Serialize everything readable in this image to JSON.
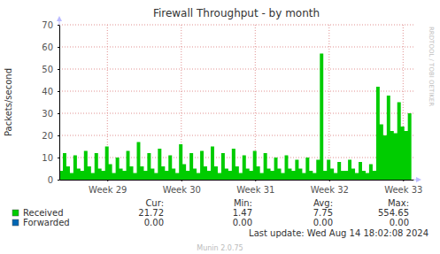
{
  "chart_data": {
    "type": "area",
    "title": "Firewall Throughput - by month",
    "y_label": "Packets/second",
    "x": [
      28.35,
      28.398,
      28.445,
      28.493,
      28.54,
      28.588,
      28.636,
      28.683,
      28.731,
      28.779,
      28.826,
      28.874,
      28.921,
      28.969,
      29.017,
      29.064,
      29.112,
      29.16,
      29.207,
      29.255,
      29.302,
      29.35,
      29.398,
      29.445,
      29.493,
      29.54,
      29.588,
      29.636,
      29.683,
      29.731,
      29.779,
      29.826,
      29.874,
      29.921,
      29.969,
      30.017,
      30.064,
      30.112,
      30.16,
      30.207,
      30.255,
      30.302,
      30.35,
      30.398,
      30.445,
      30.493,
      30.54,
      30.588,
      30.636,
      30.683,
      30.731,
      30.779,
      30.826,
      30.874,
      30.921,
      30.969,
      31.017,
      31.064,
      31.112,
      31.16,
      31.207,
      31.255,
      31.302,
      31.35,
      31.398,
      31.445,
      31.493,
      31.54,
      31.588,
      31.636,
      31.683,
      31.731,
      31.779,
      31.826,
      31.874,
      31.921,
      31.969,
      32.017,
      32.064,
      32.112,
      32.16,
      32.207,
      32.255,
      32.302,
      32.35,
      32.398,
      32.445,
      32.493,
      32.54,
      32.588,
      32.636,
      32.683,
      32.731,
      32.779,
      32.826,
      32.874,
      32.921,
      32.969,
      33.017,
      33.064,
      33.112
    ],
    "xlim": [
      28.35,
      33.14
    ],
    "xticks": [
      {
        "value": 29,
        "label": "Week 29"
      },
      {
        "value": 30,
        "label": "Week 30"
      },
      {
        "value": 31,
        "label": "Week 31"
      },
      {
        "value": 32,
        "label": "Week 32"
      },
      {
        "value": 33,
        "label": "Week 33"
      }
    ],
    "ylim": [
      0,
      70
    ],
    "yticks": [
      0,
      10,
      20,
      30,
      40,
      50,
      60,
      70
    ],
    "grid": true,
    "stat_headers": [
      "Cur:",
      "Min:",
      "Avg:",
      "Max:"
    ],
    "series": [
      {
        "name": "Received",
        "color": "#00cc00",
        "values": [
          4,
          12,
          6,
          3,
          11,
          5,
          4,
          13,
          6,
          3,
          12,
          5,
          4,
          15,
          7,
          3,
          10,
          5,
          4,
          13,
          6,
          3,
          17,
          6,
          4,
          12,
          5,
          3,
          14,
          6,
          4,
          11,
          5,
          3,
          16,
          7,
          4,
          12,
          5,
          3,
          13,
          6,
          4,
          15,
          6,
          3,
          12,
          5,
          4,
          14,
          6,
          3,
          11,
          5,
          4,
          13,
          6,
          3,
          12,
          5,
          4,
          10,
          5,
          3,
          11,
          5,
          4,
          9,
          5,
          3,
          10,
          4,
          3,
          9,
          57,
          4,
          9,
          5,
          3,
          8,
          4,
          4,
          9,
          5,
          3,
          8,
          4,
          3,
          7,
          4,
          42,
          25,
          20,
          38,
          22,
          21,
          35,
          24,
          22,
          30,
          21.72
        ],
        "stats": [
          21.72,
          1.47,
          7.75,
          554.65
        ]
      },
      {
        "name": "Forwarded",
        "color": "#0066b3",
        "values": [
          0,
          0,
          0,
          0,
          0,
          0,
          0,
          0,
          0,
          0,
          0,
          0,
          0,
          0,
          0,
          0,
          0,
          0,
          0,
          0,
          0,
          0,
          0,
          0,
          0,
          0,
          0,
          0,
          0,
          0,
          0,
          0,
          0,
          0,
          0,
          0,
          0,
          0,
          0,
          0,
          0,
          0,
          0,
          0,
          0,
          0,
          0,
          0,
          0,
          0,
          0,
          0,
          0,
          0,
          0,
          0,
          0,
          0,
          0,
          0,
          0,
          0,
          0,
          0,
          0,
          0,
          0,
          0,
          0,
          0,
          0,
          0,
          0,
          0,
          0,
          0,
          0,
          0,
          0,
          0,
          0,
          0,
          0,
          0,
          0,
          0,
          0,
          0,
          0,
          0,
          0,
          0,
          0,
          0,
          0,
          0,
          0,
          0,
          0,
          0,
          0
        ],
        "stats": [
          {
            "value": 0,
            "label": "0.00"
          },
          {
            "value": 0,
            "label": "0.00"
          },
          {
            "value": 0,
            "label": "0.00"
          },
          {
            "value": 0,
            "label": "0.00"
          }
        ]
      }
    ],
    "annotations": [
      "Last update: Wed Aug 14 18:02:08 2024",
      "Munin 2.0.75",
      "RRDTOOL / TOBI OETIKER"
    ]
  }
}
